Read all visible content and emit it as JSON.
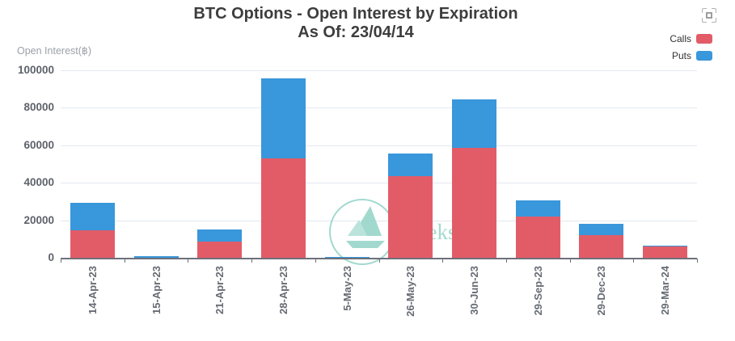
{
  "title": {
    "line1": "BTC Options - Open Interest by Expiration",
    "line2": "As Of: 23/04/14"
  },
  "y_axis_name": "Open Interest(฿)",
  "legend": {
    "items": [
      {
        "label": "Calls",
        "color": "#e25c68"
      },
      {
        "label": "Puts",
        "color": "#3997db"
      }
    ]
  },
  "watermark": {
    "text": "Greeks.live",
    "color": "#8cd0c4"
  },
  "colors": {
    "grid_line": "#e3e8f0",
    "axis_line": "#6e7079",
    "calls": "#e25c68",
    "puts": "#3997db"
  },
  "chart_data": {
    "type": "bar",
    "stacked": true,
    "title": "BTC Options - Open Interest by Expiration As Of: 23/04/14",
    "xlabel": "",
    "ylabel": "Open Interest(฿)",
    "ylim": [
      0,
      100000
    ],
    "yticks": [
      0,
      20000,
      40000,
      60000,
      80000,
      100000
    ],
    "grid": true,
    "legend_position": "top-right",
    "x_label_rotation": 90,
    "categories": [
      "14-Apr-23",
      "15-Apr-23",
      "21-Apr-23",
      "28-Apr-23",
      "5-May-23",
      "26-May-23",
      "30-Jun-23",
      "29-Sep-23",
      "29-Dec-23",
      "29-Mar-24"
    ],
    "series": [
      {
        "name": "Calls",
        "color": "#e25c68",
        "values": [
          14500,
          150,
          8600,
          53000,
          80,
          43400,
          58800,
          21900,
          12200,
          5900
        ]
      },
      {
        "name": "Puts",
        "color": "#3997db",
        "values": [
          15000,
          700,
          6500,
          42800,
          250,
          12200,
          25800,
          8600,
          6100,
          450
        ]
      }
    ]
  }
}
